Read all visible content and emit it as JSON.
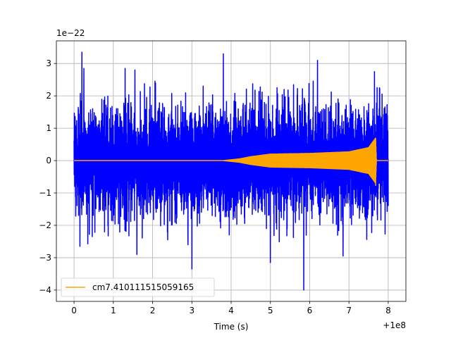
{
  "chart_data": {
    "type": "line",
    "xlabel": "Time (s)",
    "ylabel": "",
    "x_offset_label": "+1e8",
    "y_scale_label": "1e−22",
    "xlim": [
      -0.45,
      8.45
    ],
    "ylim": [
      -4.35,
      3.7
    ],
    "x_ticks": [
      0,
      1,
      2,
      3,
      4,
      5,
      6,
      7,
      8
    ],
    "x_tick_labels": [
      "0",
      "1",
      "2",
      "3",
      "4",
      "5",
      "6",
      "7",
      "8"
    ],
    "y_ticks": [
      -4,
      -3,
      -2,
      -1,
      0,
      1,
      2,
      3
    ],
    "y_tick_labels": [
      "−4",
      "−3",
      "−2",
      "−1",
      "0",
      "1",
      "2",
      "3"
    ],
    "grid": true,
    "legend_position": "lower-left",
    "series": [
      {
        "name": "",
        "color": "#0000ff",
        "kind": "noise",
        "x_range": [
          0.0,
          8.0
        ],
        "envelope_abs": 2.0,
        "peaks": [
          {
            "x": 0.2,
            "y": 3.35
          },
          {
            "x": 0.25,
            "y": 2.85
          },
          {
            "x": 1.3,
            "y": 2.85
          },
          {
            "x": 1.55,
            "y": 2.8
          },
          {
            "x": 3.8,
            "y": 3.3
          },
          {
            "x": 6.2,
            "y": 3.1
          },
          {
            "x": 7.65,
            "y": 2.75
          },
          {
            "x": 3.0,
            "y": -3.35
          },
          {
            "x": 5.85,
            "y": -4.0
          },
          {
            "x": 5.0,
            "y": -3.15
          },
          {
            "x": 0.15,
            "y": -2.65
          },
          {
            "x": 1.6,
            "y": -2.9
          },
          {
            "x": 2.9,
            "y": -2.6
          },
          {
            "x": 6.85,
            "y": -2.95
          }
        ]
      },
      {
        "name": "cm7.410111515059165",
        "color": "#ffa500",
        "kind": "chirp",
        "x_range": [
          0.0,
          8.0
        ],
        "envelope": [
          {
            "x": 0.0,
            "y": 0.0
          },
          {
            "x": 3.8,
            "y": 0.0
          },
          {
            "x": 4.2,
            "y": 0.05
          },
          {
            "x": 4.5,
            "y": 0.12
          },
          {
            "x": 5.0,
            "y": 0.2
          },
          {
            "x": 6.0,
            "y": 0.22
          },
          {
            "x": 7.0,
            "y": 0.27
          },
          {
            "x": 7.5,
            "y": 0.4
          },
          {
            "x": 7.68,
            "y": 0.7
          },
          {
            "x": 7.7,
            "y": 0.0
          },
          {
            "x": 8.0,
            "y": 0.0
          }
        ],
        "merger_peak": {
          "x": 7.68,
          "y_max": 0.7,
          "y_min": -0.78
        }
      }
    ]
  }
}
